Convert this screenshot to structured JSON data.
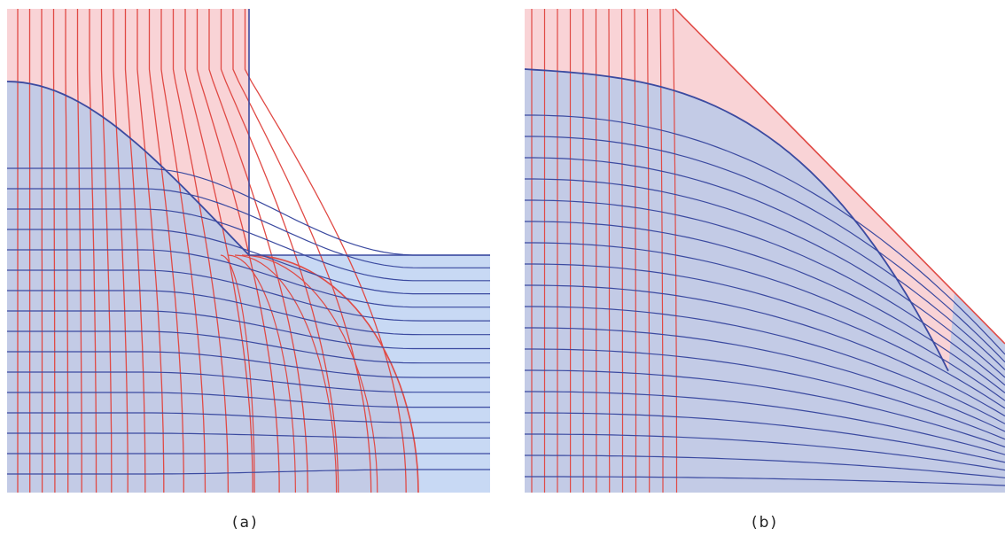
{
  "figure": {
    "panel_a": {
      "caption": "(a)"
    },
    "panel_b": {
      "caption": "(b)"
    }
  },
  "colors": {
    "red_line": "#e04a45",
    "blue_line": "#3b4aa0",
    "red_fill": "#f9d3d6",
    "blue_fill": "#c3cbe6",
    "light_blue_fill": "#c8d9f4",
    "background": "#ffffff"
  }
}
